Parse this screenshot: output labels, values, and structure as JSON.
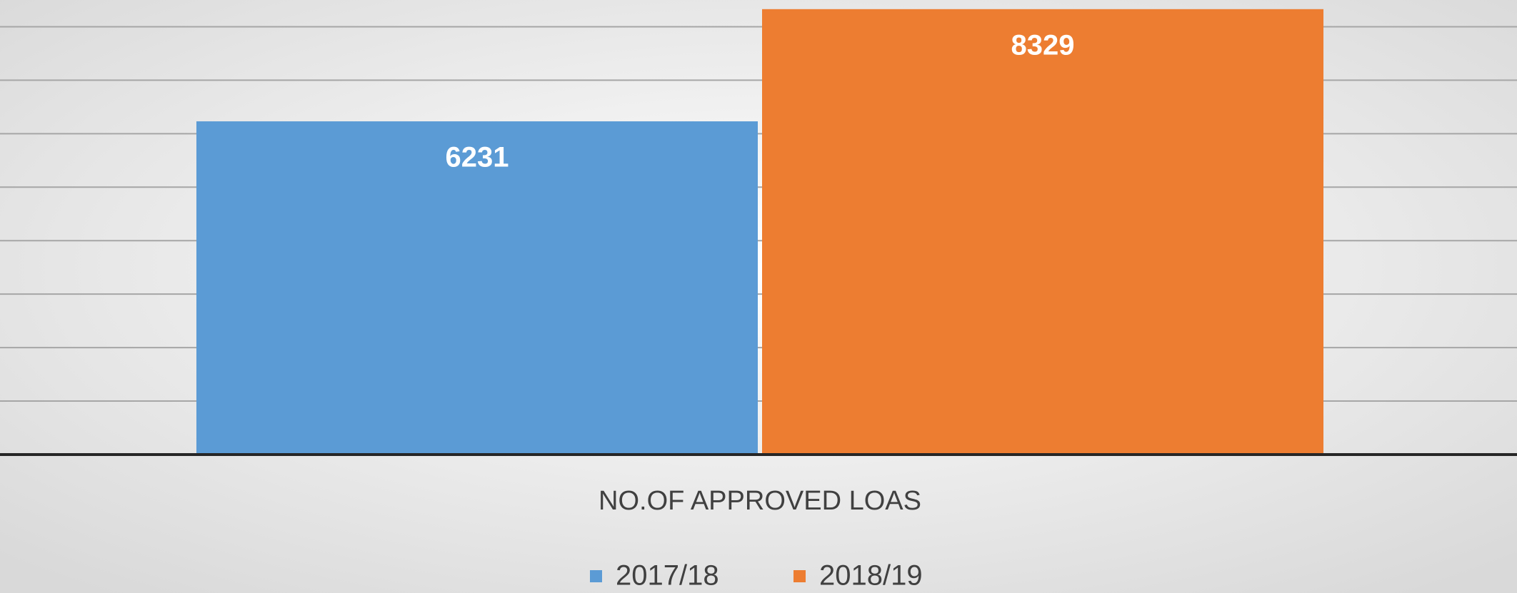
{
  "chart_data": {
    "type": "bar",
    "categories": [
      "NO.OF APPROVED LOAS"
    ],
    "series": [
      {
        "name": "2017/18",
        "color": "#5b9bd5",
        "values": [
          6231
        ]
      },
      {
        "name": "2018/19",
        "color": "#ed7d31",
        "values": [
          8329
        ]
      }
    ],
    "ylim": [
      0,
      8500
    ],
    "yticks": [
      0,
      1000,
      2000,
      3000,
      4000,
      5000,
      6000,
      7000,
      8000
    ],
    "grid": true,
    "legend": "bottom"
  }
}
